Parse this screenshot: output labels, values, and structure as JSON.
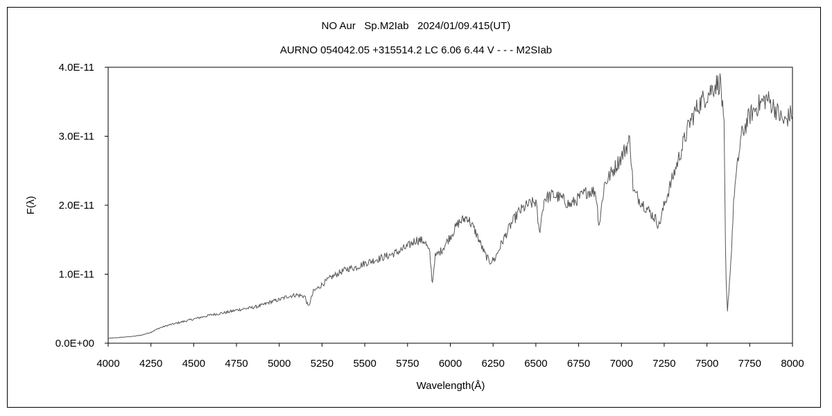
{
  "chart_data": {
    "type": "line",
    "title": "NO Aur   Sp.M2Iab   2024/01/09.415(UT)",
    "subtitle": "AURNO 054042.05 +315514.2 LC 6.06 6.44 V - - - M2SIab",
    "xlabel": "Wavelength(Å)",
    "ylabel": "F(λ)",
    "xlim": [
      4000,
      8000
    ],
    "ylim": [
      0,
      4e-11
    ],
    "x_ticks": [
      4000,
      4250,
      4500,
      4750,
      5000,
      5250,
      5500,
      5750,
      6000,
      6250,
      6500,
      6750,
      7000,
      7250,
      7500,
      7750,
      8000
    ],
    "x_tick_labels": [
      "4000",
      "4250",
      "4500",
      "4750",
      "5000",
      "5250",
      "5500",
      "5750",
      "6000",
      "6250",
      "6500",
      "6750",
      "7000",
      "7250",
      "7500",
      "7750",
      "8000"
    ],
    "y_ticks": [
      0,
      1e-11,
      2e-11,
      3e-11,
      4e-11
    ],
    "y_tick_labels": [
      "0.0E+00",
      "1.0E-11",
      "2.0E-11",
      "3.0E-11",
      "4.0E-11"
    ],
    "grid": false,
    "series": [
      {
        "x": [
          4000,
          4050,
          4100,
          4150,
          4200,
          4250,
          4300,
          4350,
          4400,
          4450,
          4500,
          4550,
          4600,
          4650,
          4700,
          4750,
          4800,
          4850,
          4900,
          4950,
          5000,
          5050,
          5100,
          5150,
          5170,
          5200,
          5250,
          5300,
          5350,
          5400,
          5450,
          5500,
          5550,
          5600,
          5650,
          5700,
          5750,
          5800,
          5850,
          5880,
          5895,
          5910,
          5950,
          6000,
          6050,
          6100,
          6150,
          6200,
          6230,
          6260,
          6300,
          6350,
          6400,
          6450,
          6500,
          6520,
          6550,
          6600,
          6650,
          6700,
          6750,
          6800,
          6850,
          6870,
          6900,
          6950,
          7000,
          7050,
          7070,
          7100,
          7150,
          7200,
          7220,
          7250,
          7300,
          7350,
          7400,
          7450,
          7500,
          7550,
          7580,
          7600,
          7610,
          7620,
          7640,
          7660,
          7700,
          7750,
          7800,
          7850,
          7900,
          7950,
          8000
        ],
        "y": [
          7e-13,
          8e-13,
          9e-13,
          1e-12,
          1.2e-12,
          1.6e-12,
          2.2e-12,
          2.6e-12,
          2.9e-12,
          3.2e-12,
          3.5e-12,
          3.8e-12,
          4.1e-12,
          4.3e-12,
          4.5e-12,
          4.8e-12,
          5e-12,
          5.2e-12,
          5.5e-12,
          6e-12,
          6.3e-12,
          6.8e-12,
          7e-12,
          6.8e-12,
          5.2e-12,
          7.5e-12,
          8.5e-12,
          9.5e-12,
          1.02e-11,
          1.08e-11,
          1.1e-11,
          1.16e-11,
          1.2e-11,
          1.24e-11,
          1.28e-11,
          1.33e-11,
          1.4e-11,
          1.5e-11,
          1.48e-11,
          1.3e-11,
          8.5e-12,
          1.25e-11,
          1.35e-11,
          1.55e-11,
          1.75e-11,
          1.83e-11,
          1.6e-11,
          1.3e-11,
          1.18e-11,
          1.22e-11,
          1.45e-11,
          1.7e-11,
          1.9e-11,
          2e-11,
          2.05e-11,
          1.6e-11,
          2.1e-11,
          2.15e-11,
          2.1e-11,
          2e-11,
          2.1e-11,
          2.2e-11,
          2.2e-11,
          1.7e-11,
          2.3e-11,
          2.5e-11,
          2.7e-11,
          2.95e-11,
          2.2e-11,
          2.1e-11,
          1.95e-11,
          1.8e-11,
          1.7e-11,
          2e-11,
          2.4e-11,
          2.8e-11,
          3.2e-11,
          3.45e-11,
          3.6e-11,
          3.75e-11,
          3.78e-11,
          3.1e-11,
          1e-11,
          4.5e-12,
          1.2e-11,
          2.2e-11,
          3e-11,
          3.3e-11,
          3.45e-11,
          3.55e-11,
          3.4e-11,
          3.2e-11,
          3.35e-11
        ]
      }
    ]
  },
  "colors": {
    "line": "#555555",
    "frame": "#000000"
  }
}
